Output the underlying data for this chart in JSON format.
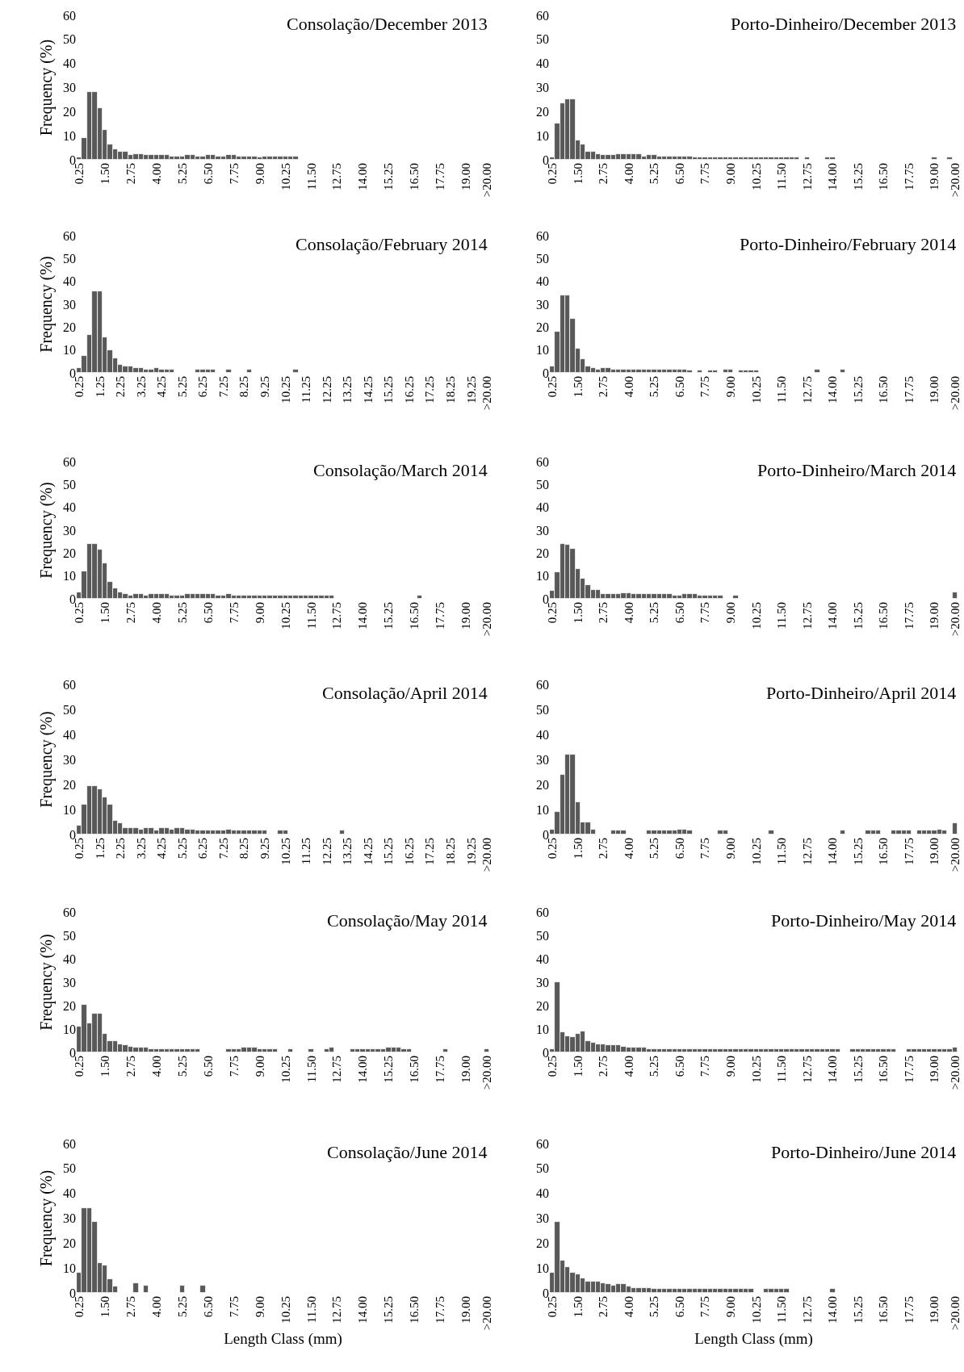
{
  "chart_data": [
    {
      "type": "bar",
      "title": "Consolação/December 2013",
      "ylabel": "Frequency (%)",
      "color": "#595959",
      "ylim": [
        0,
        60
      ],
      "yticks": [
        0,
        10,
        20,
        30,
        40,
        50,
        60
      ],
      "categories": [
        "0.25",
        null,
        null,
        null,
        null,
        "1.50",
        null,
        null,
        null,
        null,
        "2.75",
        null,
        null,
        null,
        null,
        "4.00",
        null,
        null,
        null,
        null,
        "5.25",
        null,
        null,
        null,
        null,
        "6.50",
        null,
        null,
        null,
        null,
        "7.75",
        null,
        null,
        null,
        null,
        "9.00",
        null,
        null,
        null,
        null,
        "10.25",
        null,
        null,
        null,
        null,
        "11.50",
        null,
        null,
        null,
        null,
        "12.75",
        null,
        null,
        null,
        null,
        "14.00",
        null,
        null,
        null,
        null,
        "15.25",
        null,
        null,
        null,
        null,
        "16.50",
        null,
        null,
        null,
        null,
        "17.75",
        null,
        null,
        null,
        null,
        "19.00",
        null,
        null,
        null,
        ">20.00"
      ],
      "values": [
        1,
        9,
        28,
        28,
        21.5,
        12.5,
        6.5,
        4.5,
        3.5,
        3.5,
        2,
        2.5,
        2.5,
        2,
        2,
        2,
        2,
        2,
        1.5,
        1.5,
        1.5,
        2,
        2,
        1.5,
        1.5,
        2,
        2,
        1.5,
        1.5,
        2,
        2,
        1.5,
        1.5,
        1.5,
        1.5,
        1,
        1.5,
        1.5,
        1.5,
        1.5,
        1.5,
        1.5,
        1.5,
        0,
        0,
        0,
        0,
        0,
        0,
        0,
        0,
        0,
        0,
        0,
        0,
        0,
        0,
        0,
        0,
        0,
        0,
        0,
        0,
        0,
        0,
        0,
        0,
        0,
        0,
        0,
        0,
        0,
        0,
        0,
        0,
        0,
        0,
        0,
        0,
        0
      ]
    },
    {
      "type": "bar",
      "title": "Porto-Dinheiro/December 2013",
      "color": "#595959",
      "ylim": [
        0,
        60
      ],
      "yticks": [
        0,
        10,
        20,
        30,
        40,
        50,
        60
      ],
      "categories": [
        "0.25",
        null,
        null,
        null,
        null,
        "1.50",
        null,
        null,
        null,
        null,
        "2.75",
        null,
        null,
        null,
        null,
        "4.00",
        null,
        null,
        null,
        null,
        "5.25",
        null,
        null,
        null,
        null,
        "6.50",
        null,
        null,
        null,
        null,
        "7.75",
        null,
        null,
        null,
        null,
        "9.00",
        null,
        null,
        null,
        null,
        "10.25",
        null,
        null,
        null,
        null,
        "11.50",
        null,
        null,
        null,
        null,
        "12.75",
        null,
        null,
        null,
        null,
        "14.00",
        null,
        null,
        null,
        null,
        "15.25",
        null,
        null,
        null,
        null,
        "16.50",
        null,
        null,
        null,
        null,
        "17.75",
        null,
        null,
        null,
        null,
        "19.00",
        null,
        null,
        null,
        ">20.00"
      ],
      "values": [
        1,
        15,
        23.5,
        25,
        25,
        8,
        6.5,
        3.5,
        3.5,
        2.5,
        2,
        2,
        2,
        2.5,
        2.5,
        2.5,
        2.5,
        2.5,
        1.5,
        2,
        2,
        1.5,
        1.5,
        1.5,
        1.5,
        1.5,
        1.5,
        1.5,
        1,
        1,
        1,
        1,
        1,
        1,
        1,
        1,
        1,
        1,
        1,
        1,
        1,
        1,
        1,
        1,
        1,
        1,
        1,
        1,
        1,
        0,
        1,
        0,
        0,
        0,
        1,
        1,
        0,
        0,
        0,
        0,
        0,
        0,
        0,
        0,
        0,
        0,
        0,
        0,
        0,
        0,
        0,
        0,
        0,
        0,
        0,
        1,
        0,
        0,
        1,
        0
      ]
    },
    {
      "type": "bar",
      "title": "Consolação/February 2014",
      "ylabel": "Frequency (%)",
      "color": "#595959",
      "ylim": [
        0,
        60
      ],
      "yticks": [
        0,
        10,
        20,
        30,
        40,
        50,
        60
      ],
      "categories": [
        "0.25",
        null,
        null,
        null,
        "1.25",
        null,
        null,
        null,
        "2.25",
        null,
        null,
        null,
        "3.25",
        null,
        null,
        null,
        "4.25",
        null,
        null,
        null,
        "5.25",
        null,
        null,
        null,
        "6.25",
        null,
        null,
        null,
        "7.25",
        null,
        null,
        null,
        "8.25",
        null,
        null,
        null,
        "9.25",
        null,
        null,
        null,
        "10.25",
        null,
        null,
        null,
        "11.25",
        null,
        null,
        null,
        "12.25",
        null,
        null,
        null,
        "13.25",
        null,
        null,
        null,
        "14.25",
        null,
        null,
        null,
        "15.25",
        null,
        null,
        null,
        "16.25",
        null,
        null,
        null,
        "17.25",
        null,
        null,
        null,
        "18.25",
        null,
        null,
        null,
        "19.25",
        null,
        null,
        ">20.00"
      ],
      "values": [
        2,
        7.5,
        16.5,
        35.5,
        35.5,
        15.5,
        10,
        6.5,
        3.5,
        3,
        3,
        2,
        2,
        1.5,
        1.5,
        2,
        1.5,
        1.5,
        1.5,
        0,
        0,
        0,
        0,
        1.5,
        1.5,
        1.5,
        1.5,
        0,
        0,
        1.5,
        0,
        0,
        0,
        1.5,
        0,
        0,
        0,
        0,
        0,
        0,
        0,
        0,
        1.5,
        0,
        0,
        0,
        0,
        0,
        0,
        0,
        0,
        0,
        0,
        0,
        0,
        0,
        0,
        0,
        0,
        0,
        0,
        0,
        0,
        0,
        0,
        0,
        0,
        0,
        0,
        0,
        0,
        0,
        0,
        0,
        0,
        0,
        0,
        0,
        0,
        0
      ]
    },
    {
      "type": "bar",
      "title": "Porto-Dinheiro/February 2014",
      "color": "#595959",
      "ylim": [
        0,
        60
      ],
      "yticks": [
        0,
        10,
        20,
        30,
        40,
        50,
        60
      ],
      "categories": [
        "0.25",
        null,
        null,
        null,
        null,
        "1.50",
        null,
        null,
        null,
        null,
        "2.75",
        null,
        null,
        null,
        null,
        "4.00",
        null,
        null,
        null,
        null,
        "5.25",
        null,
        null,
        null,
        null,
        "6.50",
        null,
        null,
        null,
        null,
        "7.75",
        null,
        null,
        null,
        null,
        "9.00",
        null,
        null,
        null,
        null,
        "10.25",
        null,
        null,
        null,
        null,
        "11.50",
        null,
        null,
        null,
        null,
        "12.75",
        null,
        null,
        null,
        null,
        "14.00",
        null,
        null,
        null,
        null,
        "15.25",
        null,
        null,
        null,
        null,
        "16.50",
        null,
        null,
        null,
        null,
        "17.75",
        null,
        null,
        null,
        null,
        "19.00",
        null,
        null,
        null,
        ">20.00"
      ],
      "values": [
        3,
        18,
        34,
        34,
        23.5,
        10.5,
        6,
        3,
        2,
        1.5,
        2,
        2,
        1.5,
        1.5,
        1.5,
        1.5,
        1.5,
        1.5,
        1.5,
        1.5,
        1.5,
        1.5,
        1.5,
        1.5,
        1.5,
        1.5,
        1.5,
        1,
        0,
        1,
        0,
        1,
        1,
        0,
        1.5,
        1.5,
        0,
        1,
        1,
        1,
        1,
        0,
        0,
        0,
        0,
        0,
        0,
        0,
        0,
        0,
        0,
        0,
        1.5,
        0,
        0,
        0,
        0,
        1.5,
        0,
        0,
        0,
        0,
        0,
        0,
        0,
        0,
        0,
        0,
        0,
        0,
        0,
        0,
        0,
        0,
        0,
        0,
        0,
        0,
        0,
        0
      ]
    },
    {
      "type": "bar",
      "title": "Consolação/March 2014",
      "ylabel": "Frequency (%)",
      "color": "#595959",
      "ylim": [
        0,
        60
      ],
      "yticks": [
        0,
        10,
        20,
        30,
        40,
        50,
        60
      ],
      "categories": [
        "0.25",
        null,
        null,
        null,
        null,
        "1.50",
        null,
        null,
        null,
        null,
        "2.75",
        null,
        null,
        null,
        null,
        "4.00",
        null,
        null,
        null,
        null,
        "5.25",
        null,
        null,
        null,
        null,
        "6.50",
        null,
        null,
        null,
        null,
        "7.75",
        null,
        null,
        null,
        null,
        "9.00",
        null,
        null,
        null,
        null,
        "10.25",
        null,
        null,
        null,
        null,
        "11.50",
        null,
        null,
        null,
        null,
        "12.75",
        null,
        null,
        null,
        null,
        "14.00",
        null,
        null,
        null,
        null,
        "15.25",
        null,
        null,
        null,
        null,
        "16.50",
        null,
        null,
        null,
        null,
        "17.75",
        null,
        null,
        null,
        null,
        "19.00",
        null,
        null,
        null,
        ">20.00"
      ],
      "values": [
        3,
        12,
        24,
        24,
        21.5,
        15.5,
        7.5,
        4.5,
        3,
        2,
        1.5,
        2,
        2,
        1.5,
        2,
        2,
        2,
        2,
        1.5,
        1.5,
        1.5,
        2,
        2,
        2,
        2,
        2,
        2,
        1.5,
        1.5,
        2,
        1.5,
        1.5,
        1.5,
        1.5,
        1.5,
        1.5,
        1.5,
        1.5,
        1.5,
        1.5,
        1.5,
        1.5,
        1.5,
        1.5,
        1.5,
        1.5,
        1.5,
        1.5,
        1.5,
        1.5,
        0,
        0,
        0,
        0,
        0,
        0,
        0,
        0,
        0,
        0,
        0,
        0,
        0,
        0,
        0,
        0,
        1.5,
        0,
        0,
        0,
        0,
        0,
        0,
        0,
        0,
        0,
        0,
        0,
        0,
        0
      ]
    },
    {
      "type": "bar",
      "title": "Porto-Dinheiro/March 2014",
      "color": "#595959",
      "ylim": [
        0,
        60
      ],
      "yticks": [
        0,
        10,
        20,
        30,
        40,
        50,
        60
      ],
      "categories": [
        "0.25",
        null,
        null,
        null,
        null,
        "1.50",
        null,
        null,
        null,
        null,
        "2.75",
        null,
        null,
        null,
        null,
        "4.00",
        null,
        null,
        null,
        null,
        "5.25",
        null,
        null,
        null,
        null,
        "6.50",
        null,
        null,
        null,
        null,
        "7.75",
        null,
        null,
        null,
        null,
        "9.00",
        null,
        null,
        null,
        null,
        "10.25",
        null,
        null,
        null,
        null,
        "11.50",
        null,
        null,
        null,
        null,
        "12.75",
        null,
        null,
        null,
        null,
        "14.00",
        null,
        null,
        null,
        null,
        "15.25",
        null,
        null,
        null,
        null,
        "16.50",
        null,
        null,
        null,
        null,
        "17.75",
        null,
        null,
        null,
        null,
        "19.00",
        null,
        null,
        null,
        ">20.00"
      ],
      "values": [
        3.5,
        11.5,
        24,
        23.5,
        22,
        13,
        9,
        6,
        4,
        4,
        2,
        2,
        2,
        2,
        2.5,
        2.5,
        2,
        2,
        2,
        2,
        2,
        2,
        2,
        2,
        1.5,
        1.5,
        2,
        2,
        2,
        1.5,
        1.5,
        1.5,
        1.5,
        1.5,
        0,
        0,
        1.5,
        0,
        0,
        0,
        0,
        0,
        0,
        0,
        0,
        0,
        0,
        0,
        0,
        0,
        0,
        0,
        0,
        0,
        0,
        0,
        0,
        0,
        0,
        0,
        0,
        0,
        0,
        0,
        0,
        0,
        0,
        0,
        0,
        0,
        0,
        0,
        0,
        0,
        0,
        0,
        0,
        0,
        0,
        3
      ]
    },
    {
      "type": "bar",
      "title": "Consolação/April 2014",
      "ylabel": "Frequency (%)",
      "color": "#595959",
      "ylim": [
        0,
        60
      ],
      "yticks": [
        0,
        10,
        20,
        30,
        40,
        50,
        60
      ],
      "categories": [
        "0.25",
        null,
        null,
        null,
        "1.25",
        null,
        null,
        null,
        "2.25",
        null,
        null,
        null,
        "3.25",
        null,
        null,
        null,
        "4.25",
        null,
        null,
        null,
        "5.25",
        null,
        null,
        null,
        "6.25",
        null,
        null,
        null,
        "7.25",
        null,
        null,
        null,
        "8.25",
        null,
        null,
        null,
        "9.25",
        null,
        null,
        null,
        "10.25",
        null,
        null,
        null,
        "11.25",
        null,
        null,
        null,
        "12.25",
        null,
        null,
        null,
        "13.25",
        null,
        null,
        null,
        "14.25",
        null,
        null,
        null,
        "15.25",
        null,
        null,
        null,
        "16.25",
        null,
        null,
        null,
        "17.25",
        null,
        null,
        null,
        "18.25",
        null,
        null,
        null,
        "19.25",
        null,
        null,
        ">20.00"
      ],
      "values": [
        3.5,
        12,
        19.5,
        19.5,
        18,
        15,
        12,
        5.5,
        4.5,
        2.5,
        2.5,
        2.5,
        2,
        2.5,
        2.5,
        1.5,
        2.5,
        2.5,
        2,
        2.5,
        2.5,
        2,
        2,
        1.5,
        1.5,
        1.5,
        1.5,
        1.5,
        1.5,
        2,
        1.5,
        1.5,
        1.5,
        1.5,
        1.5,
        1.5,
        1.5,
        0,
        0,
        1.5,
        1.5,
        0,
        0,
        0,
        0,
        0,
        0,
        0,
        0,
        0,
        0,
        1.5,
        0,
        0,
        0,
        0,
        0,
        0,
        0,
        0,
        0,
        0,
        0,
        0,
        0,
        0,
        0,
        0,
        0,
        0,
        0,
        0,
        0,
        0,
        0,
        0,
        0,
        0,
        0,
        0
      ]
    },
    {
      "type": "bar",
      "title": "Porto-Dinheiro/April 2014",
      "color": "#595959",
      "ylim": [
        0,
        60
      ],
      "yticks": [
        0,
        10,
        20,
        30,
        40,
        50,
        60
      ],
      "categories": [
        "0.25",
        null,
        null,
        null,
        null,
        "1.50",
        null,
        null,
        null,
        null,
        "2.75",
        null,
        null,
        null,
        null,
        "4.00",
        null,
        null,
        null,
        null,
        "5.25",
        null,
        null,
        null,
        null,
        "6.50",
        null,
        null,
        null,
        null,
        "7.75",
        null,
        null,
        null,
        null,
        "9.00",
        null,
        null,
        null,
        null,
        "10.25",
        null,
        null,
        null,
        null,
        "11.50",
        null,
        null,
        null,
        null,
        "12.75",
        null,
        null,
        null,
        null,
        "14.00",
        null,
        null,
        null,
        null,
        "15.25",
        null,
        null,
        null,
        null,
        "16.50",
        null,
        null,
        null,
        null,
        "17.75",
        null,
        null,
        null,
        null,
        "19.00",
        null,
        null,
        null,
        ">20.00"
      ],
      "values": [
        2,
        9,
        24,
        32,
        32,
        13,
        5,
        5,
        2,
        0,
        0,
        0,
        1.5,
        1.5,
        1.5,
        0,
        0,
        0,
        0,
        1.5,
        1.5,
        1.5,
        1.5,
        1.5,
        1.5,
        2,
        2,
        1.5,
        0,
        0,
        0,
        0,
        0,
        1.5,
        1.5,
        0,
        0,
        0,
        0,
        0,
        0,
        0,
        0,
        1.5,
        0,
        0,
        0,
        0,
        0,
        0,
        0,
        0,
        0,
        0,
        0,
        0,
        0,
        1.5,
        0,
        0,
        0,
        0,
        1.5,
        1.5,
        1.5,
        0,
        0,
        1.5,
        1.5,
        1.5,
        1.5,
        0,
        1.5,
        1.5,
        1.5,
        1.5,
        2,
        1.5,
        0,
        4.5
      ]
    },
    {
      "type": "bar",
      "title": "Consolação/May 2014",
      "ylabel": "Frequency (%)",
      "color": "#595959",
      "ylim": [
        0,
        60
      ],
      "yticks": [
        0,
        10,
        20,
        30,
        40,
        50,
        60
      ],
      "categories": [
        "0.25",
        null,
        null,
        null,
        null,
        "1.50",
        null,
        null,
        null,
        null,
        "2.75",
        null,
        null,
        null,
        null,
        "4.00",
        null,
        null,
        null,
        null,
        "5.25",
        null,
        null,
        null,
        null,
        "6.50",
        null,
        null,
        null,
        null,
        "7.75",
        null,
        null,
        null,
        null,
        "9.00",
        null,
        null,
        null,
        null,
        "10.25",
        null,
        null,
        null,
        null,
        "11.50",
        null,
        null,
        null,
        null,
        "12.75",
        null,
        null,
        null,
        null,
        "14.00",
        null,
        null,
        null,
        null,
        "15.25",
        null,
        null,
        null,
        null,
        "16.50",
        null,
        null,
        null,
        null,
        "17.75",
        null,
        null,
        null,
        null,
        "19.00",
        null,
        null,
        null,
        ">20.00"
      ],
      "values": [
        11,
        20.5,
        12.5,
        16.5,
        16.5,
        8,
        5,
        5,
        3.5,
        3,
        2.5,
        2,
        2,
        2,
        1.5,
        1.5,
        1.5,
        1.5,
        1.5,
        1.5,
        1.5,
        1.5,
        1.5,
        1.5,
        0,
        0,
        0,
        0,
        0,
        1.5,
        1.5,
        1.5,
        2,
        2,
        2,
        1.5,
        1.5,
        1.5,
        1.5,
        0,
        0,
        1.5,
        0,
        0,
        0,
        1.5,
        0,
        0,
        1.5,
        2,
        0,
        0,
        0,
        1.5,
        1.5,
        1.5,
        1.5,
        1.5,
        1.5,
        1.5,
        2,
        2,
        2,
        1.5,
        1.5,
        0,
        0,
        0,
        0,
        0,
        0,
        1.5,
        0,
        0,
        0,
        0,
        0,
        0,
        0,
        1.5
      ]
    },
    {
      "type": "bar",
      "title": "Porto-Dinheiro/May 2014",
      "color": "#595959",
      "ylim": [
        0,
        60
      ],
      "yticks": [
        0,
        10,
        20,
        30,
        40,
        50,
        60
      ],
      "categories": [
        "0.25",
        null,
        null,
        null,
        null,
        "1.50",
        null,
        null,
        null,
        null,
        "2.75",
        null,
        null,
        null,
        null,
        "4.00",
        null,
        null,
        null,
        null,
        "5.25",
        null,
        null,
        null,
        null,
        "6.50",
        null,
        null,
        null,
        null,
        "7.75",
        null,
        null,
        null,
        null,
        "9.00",
        null,
        null,
        null,
        null,
        "10.25",
        null,
        null,
        null,
        null,
        "11.50",
        null,
        null,
        null,
        null,
        "12.75",
        null,
        null,
        null,
        null,
        "14.00",
        null,
        null,
        null,
        null,
        "15.25",
        null,
        null,
        null,
        null,
        "16.50",
        null,
        null,
        null,
        null,
        "17.75",
        null,
        null,
        null,
        null,
        "19.00",
        null,
        null,
        null,
        ">20.00"
      ],
      "values": [
        1.5,
        30,
        8.5,
        7,
        6.5,
        8,
        9,
        5,
        4,
        3.5,
        3.5,
        3,
        3,
        3,
        2.5,
        2,
        2,
        2,
        2,
        1.5,
        1.5,
        1.5,
        1.5,
        1.5,
        1.5,
        1.5,
        1.5,
        1.5,
        1.5,
        1.5,
        1.5,
        1.5,
        1.5,
        1.5,
        1.5,
        1.5,
        1.5,
        1.5,
        1.5,
        1.5,
        1.5,
        1.5,
        1.5,
        1.5,
        1.5,
        1.5,
        1.5,
        1.5,
        1.5,
        1.5,
        1.5,
        1.5,
        1.5,
        1.5,
        1.5,
        1.5,
        1.5,
        0,
        0,
        1.5,
        1.5,
        1.5,
        1.5,
        1.5,
        1.5,
        1.5,
        1.5,
        1.5,
        0,
        0,
        1.5,
        1.5,
        1.5,
        1.5,
        1.5,
        1.5,
        1.5,
        1.5,
        1.5,
        2
      ]
    },
    {
      "type": "bar",
      "title": "Consolação/June 2014",
      "ylabel": "Frequency (%)",
      "xlabel": "Length Class (mm)",
      "color": "#595959",
      "ylim": [
        0,
        60
      ],
      "yticks": [
        0,
        10,
        20,
        30,
        40,
        50,
        60
      ],
      "categories": [
        "0.25",
        null,
        null,
        null,
        null,
        "1.50",
        null,
        null,
        null,
        null,
        "2.75",
        null,
        null,
        null,
        null,
        "4.00",
        null,
        null,
        null,
        null,
        "5.25",
        null,
        null,
        null,
        null,
        "6.50",
        null,
        null,
        null,
        null,
        "7.75",
        null,
        null,
        null,
        null,
        "9.00",
        null,
        null,
        null,
        null,
        "10.25",
        null,
        null,
        null,
        null,
        "11.50",
        null,
        null,
        null,
        null,
        "12.75",
        null,
        null,
        null,
        null,
        "14.00",
        null,
        null,
        null,
        null,
        "15.25",
        null,
        null,
        null,
        null,
        "16.50",
        null,
        null,
        null,
        null,
        "17.75",
        null,
        null,
        null,
        null,
        "19.00",
        null,
        null,
        null,
        ">20.00"
      ],
      "values": [
        8,
        34,
        34,
        28.5,
        12,
        11,
        5.5,
        2.5,
        0,
        0,
        0,
        4,
        0,
        3,
        0,
        0,
        0,
        0,
        0,
        0,
        3,
        0,
        0,
        0,
        3,
        0,
        0,
        0,
        0,
        0,
        0,
        0,
        0,
        0,
        0,
        0,
        0,
        0,
        0,
        0,
        0,
        0,
        0,
        0,
        0,
        0,
        0,
        0,
        0,
        0,
        0,
        0,
        0,
        0,
        0,
        0,
        0,
        0,
        0,
        0,
        0,
        0,
        0,
        0,
        0,
        0,
        0,
        0,
        0,
        0,
        0,
        0,
        0,
        0,
        0,
        0,
        0,
        0,
        0,
        0
      ]
    },
    {
      "type": "bar",
      "title": "Porto-Dinheiro/June 2014",
      "xlabel": "Length Class (mm)",
      "color": "#595959",
      "ylim": [
        0,
        60
      ],
      "yticks": [
        0,
        10,
        20,
        30,
        40,
        50,
        60
      ],
      "categories": [
        "0.25",
        null,
        null,
        null,
        null,
        "1.50",
        null,
        null,
        null,
        null,
        "2.75",
        null,
        null,
        null,
        null,
        "4.00",
        null,
        null,
        null,
        null,
        "5.25",
        null,
        null,
        null,
        null,
        "6.50",
        null,
        null,
        null,
        null,
        "7.75",
        null,
        null,
        null,
        null,
        "9.00",
        null,
        null,
        null,
        null,
        "10.25",
        null,
        null,
        null,
        null,
        "11.50",
        null,
        null,
        null,
        null,
        "12.75",
        null,
        null,
        null,
        null,
        "14.00",
        null,
        null,
        null,
        null,
        "15.25",
        null,
        null,
        null,
        null,
        "16.50",
        null,
        null,
        null,
        null,
        "17.75",
        null,
        null,
        null,
        null,
        "19.00",
        null,
        null,
        null,
        ">20.00"
      ],
      "values": [
        8,
        28.5,
        13,
        10.5,
        8,
        7.5,
        6,
        4.5,
        4.5,
        4.5,
        4,
        3.5,
        3,
        3.5,
        3.5,
        2.5,
        2,
        2,
        2,
        2,
        1.5,
        1.5,
        1.5,
        1.5,
        1.5,
        1.5,
        1.5,
        1.5,
        1.5,
        1.5,
        1.5,
        1.5,
        1.5,
        1.5,
        1.5,
        1.5,
        1.5,
        1.5,
        1.5,
        1.5,
        0,
        0,
        1.5,
        1.5,
        1.5,
        1.5,
        1.5,
        0,
        0,
        0,
        0,
        0,
        0,
        0,
        0,
        1.5,
        0,
        0,
        0,
        0,
        0,
        0,
        0,
        0,
        0,
        0,
        0,
        0,
        0,
        0,
        0,
        0,
        0,
        0,
        0,
        0,
        0,
        0,
        0,
        0
      ]
    }
  ]
}
